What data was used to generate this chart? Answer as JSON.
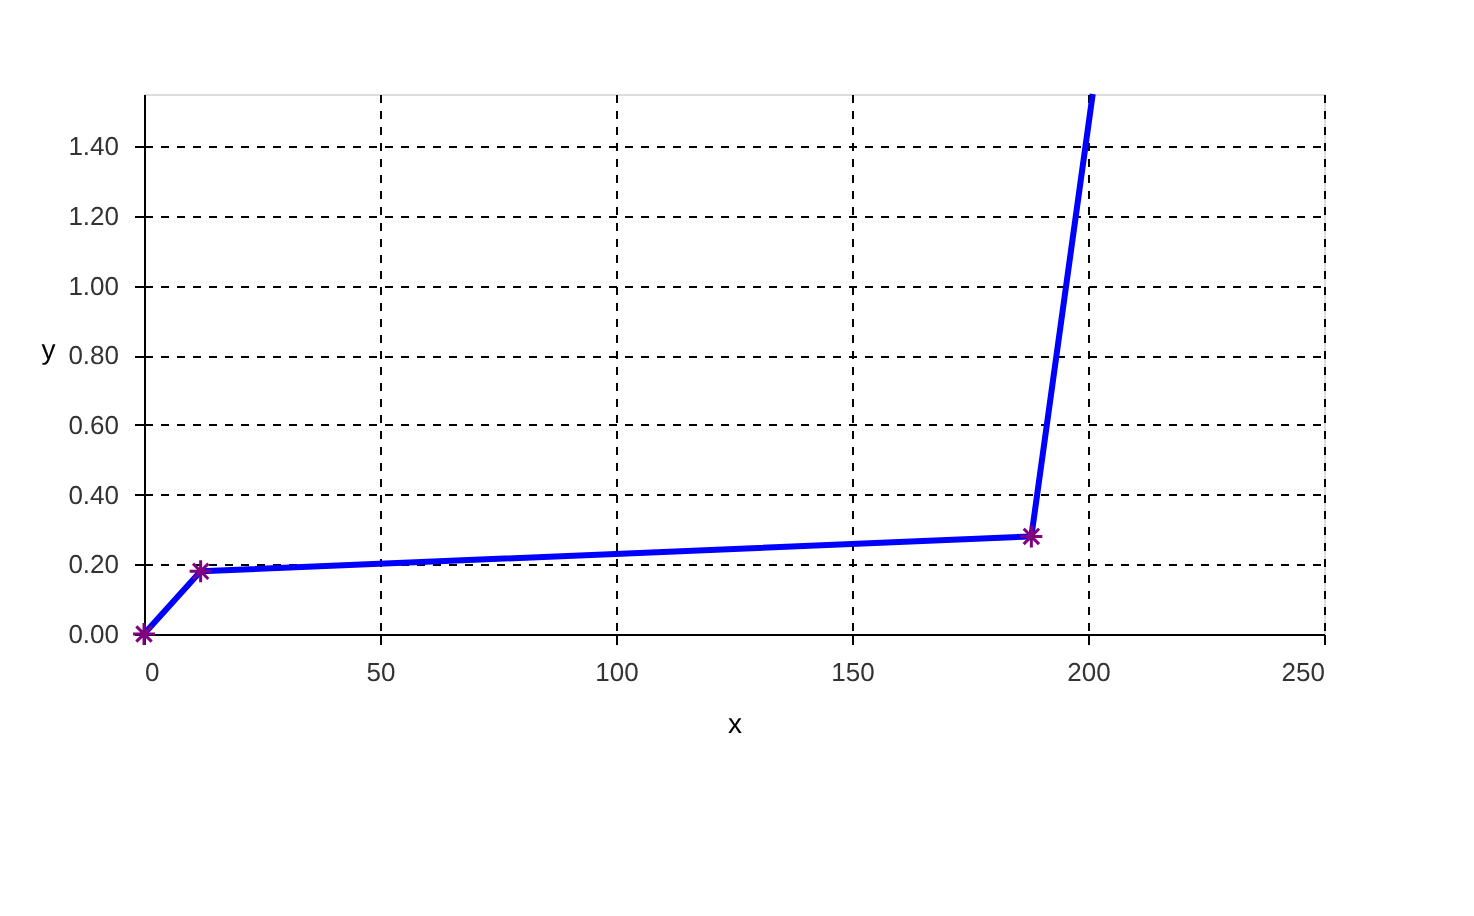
{
  "chart_data": {
    "type": "line",
    "xlabel": "x",
    "ylabel": "y",
    "xlim": [
      0,
      250
    ],
    "xticks": [
      0,
      50,
      100,
      150,
      200,
      250
    ],
    "ylim": [
      0,
      1.55
    ],
    "yticks": [
      {
        "value": 0,
        "label": "0.00"
      },
      {
        "value": 0.2,
        "label": "0.20"
      },
      {
        "value": 0.4,
        "label": "0.40"
      },
      {
        "value": 0.6,
        "label": "0.60"
      },
      {
        "value": 0.8,
        "label": "0.80"
      },
      {
        "value": 1.0,
        "label": "1.00"
      },
      {
        "value": 1.2,
        "label": "1.20"
      },
      {
        "value": 1.4,
        "label": "1.40"
      }
    ],
    "grid": true,
    "line_style": "solid",
    "series": [
      {
        "color": "#0000ff",
        "marker": "none",
        "x": [
          0,
          12,
          188,
          201
        ],
        "values": [
          0,
          0.18,
          0.28,
          1.55
        ]
      },
      {
        "type": "scatter",
        "color": "#800080",
        "marker": "cross",
        "x": [
          0,
          12,
          188
        ],
        "values": [
          0,
          0.18,
          0.28
        ]
      }
    ]
  }
}
